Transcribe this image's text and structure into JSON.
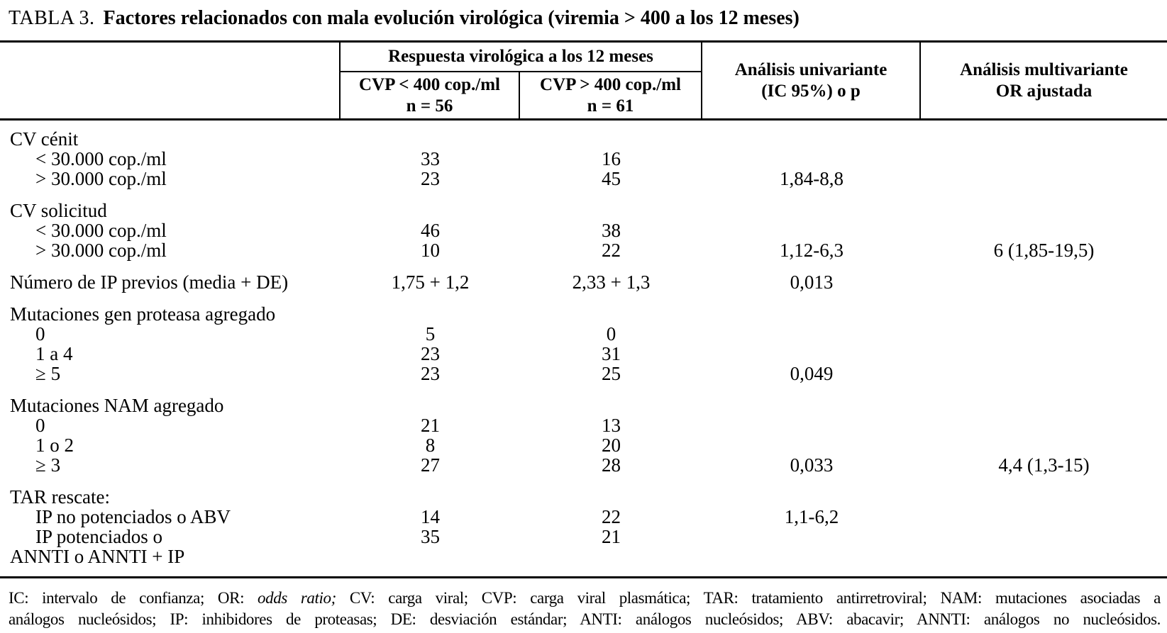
{
  "title": {
    "label": "TABLA 3.",
    "text": "Factores relacionados con mala evolución virológica (viremia > 400 a los 12 meses)"
  },
  "header": {
    "response_group": "Respuesta virológica a los 12 meses",
    "col_cvp_lt": {
      "line1": "CVP < 400 cop./ml",
      "line2": "n = 56"
    },
    "col_cvp_gt": {
      "line1": "CVP > 400 cop./ml",
      "line2": "n = 61"
    },
    "col_univariate": {
      "line1": "Análisis univariante",
      "line2": "(IC 95%) o p"
    },
    "col_multivariate": {
      "line1": "Análisis multivariante",
      "line2": "OR ajustada"
    }
  },
  "rows": [
    {
      "type": "row",
      "indent": 0,
      "label": "CV cénit",
      "cvp_lt": "",
      "cvp_gt": "",
      "univariate": "",
      "multivariate": ""
    },
    {
      "type": "row",
      "indent": 1,
      "label": "< 30.000 cop./ml",
      "cvp_lt": "33",
      "cvp_gt": "16",
      "univariate": "",
      "multivariate": ""
    },
    {
      "type": "row",
      "indent": 1,
      "label": "> 30.000 cop./ml",
      "cvp_lt": "23",
      "cvp_gt": "45",
      "univariate": "1,84-8,8",
      "multivariate": ""
    },
    {
      "type": "spacer"
    },
    {
      "type": "row",
      "indent": 0,
      "label": "CV solicitud",
      "cvp_lt": "",
      "cvp_gt": "",
      "univariate": "",
      "multivariate": ""
    },
    {
      "type": "row",
      "indent": 1,
      "label": "< 30.000 cop./ml",
      "cvp_lt": "46",
      "cvp_gt": "38",
      "univariate": "",
      "multivariate": ""
    },
    {
      "type": "row",
      "indent": 1,
      "label": "> 30.000 cop./ml",
      "cvp_lt": "10",
      "cvp_gt": "22",
      "univariate": "1,12-6,3",
      "multivariate": "6 (1,85-19,5)"
    },
    {
      "type": "spacer"
    },
    {
      "type": "row",
      "indent": 0,
      "label": "Número de IP previos (media + DE)",
      "cvp_lt": "1,75 + 1,2",
      "cvp_gt": "2,33 + 1,3",
      "univariate": "0,013",
      "multivariate": ""
    },
    {
      "type": "spacer"
    },
    {
      "type": "row",
      "indent": 0,
      "label": "Mutaciones gen proteasa agregado",
      "cvp_lt": "",
      "cvp_gt": "",
      "univariate": "",
      "multivariate": ""
    },
    {
      "type": "row",
      "indent": 1,
      "label": "0",
      "cvp_lt": "5",
      "cvp_gt": "0",
      "univariate": "",
      "multivariate": ""
    },
    {
      "type": "row",
      "indent": 1,
      "label": "1 a 4",
      "cvp_lt": "23",
      "cvp_gt": "31",
      "univariate": "",
      "multivariate": ""
    },
    {
      "type": "row",
      "indent": 1,
      "label": "≥ 5",
      "cvp_lt": "23",
      "cvp_gt": "25",
      "univariate": "0,049",
      "multivariate": ""
    },
    {
      "type": "spacer"
    },
    {
      "type": "row",
      "indent": 0,
      "label": "Mutaciones NAM agregado",
      "cvp_lt": "",
      "cvp_gt": "",
      "univariate": "",
      "multivariate": ""
    },
    {
      "type": "row",
      "indent": 1,
      "label": "0",
      "cvp_lt": "21",
      "cvp_gt": "13",
      "univariate": "",
      "multivariate": ""
    },
    {
      "type": "row",
      "indent": 1,
      "label": "1 o 2",
      "cvp_lt": "8",
      "cvp_gt": "20",
      "univariate": "",
      "multivariate": ""
    },
    {
      "type": "row",
      "indent": 1,
      "label": "≥ 3",
      "cvp_lt": "27",
      "cvp_gt": "28",
      "univariate": "0,033",
      "multivariate": "4,4 (1,3-15)"
    },
    {
      "type": "spacer"
    },
    {
      "type": "row",
      "indent": 0,
      "label": "TAR rescate:",
      "cvp_lt": "",
      "cvp_gt": "",
      "univariate": "",
      "multivariate": ""
    },
    {
      "type": "row",
      "indent": 1,
      "label": "IP no potenciados o ABV",
      "cvp_lt": "14",
      "cvp_gt": "22",
      "univariate": "1,1-6,2",
      "multivariate": ""
    },
    {
      "type": "row",
      "indent": 1,
      "label": "IP potenciados o",
      "cvp_lt": "35",
      "cvp_gt": "21",
      "univariate": "",
      "multivariate": ""
    },
    {
      "type": "row",
      "indent": 0,
      "label": "ANNTI o ANNTI + IP",
      "cvp_lt": "",
      "cvp_gt": "",
      "univariate": "",
      "multivariate": ""
    }
  ],
  "footnote": {
    "line1_pre": "IC: intervalo de confianza; OR: ",
    "line1_italic": "odds ratio;",
    "line1_post": " CV: carga viral; CVP: carga viral plasmática; TAR: tratamiento antirretroviral; NAM: mutaciones asociadas a",
    "line2": "análogos nucleósidos; IP: inhibidores de proteasas; DE: desviación estándar; ANTI: análogos nucleósidos; ABV: abacavir; ANNTI: análogos no nucleósidos."
  },
  "colors": {
    "text": "#000000",
    "background": "#ffffff",
    "rule": "#000000"
  }
}
